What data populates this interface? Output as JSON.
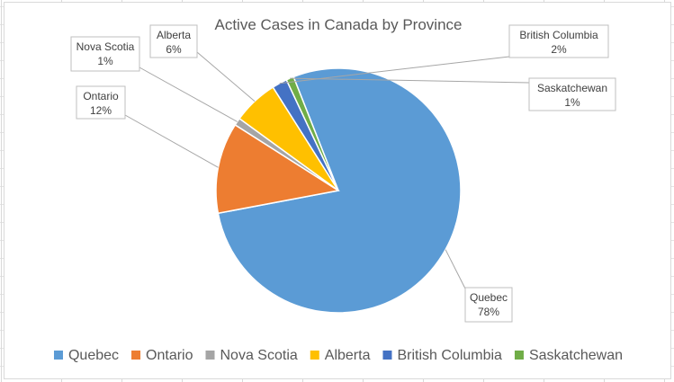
{
  "chart_data": {
    "type": "pie",
    "title": "Active Cases in Canada by Province",
    "categories": [
      "Quebec",
      "Ontario",
      "Nova Scotia",
      "Alberta",
      "British Columbia",
      "Saskatchewan"
    ],
    "values": [
      78,
      12,
      1,
      6,
      2,
      1
    ],
    "value_labels": [
      "78%",
      "12%",
      "1%",
      "6%",
      "2%",
      "1%"
    ],
    "colors": [
      "#5B9BD5",
      "#ED7D31",
      "#A5A5A5",
      "#FFC000",
      "#4472C4",
      "#70AD47"
    ],
    "legend": "bottom"
  }
}
